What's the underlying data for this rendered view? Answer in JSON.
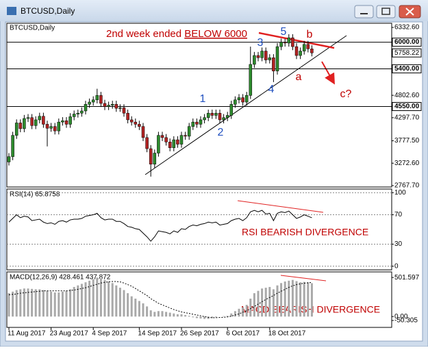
{
  "chart_data": [
    {
      "type": "candlestick",
      "title": "BTCUSD,Daily",
      "categories": [
        "11 Aug 2017",
        null,
        null,
        null,
        null,
        null,
        null,
        null,
        null,
        null,
        null,
        "23 Aug 2017",
        null,
        null,
        null,
        null,
        null,
        null,
        null,
        null,
        null,
        null,
        "4 Sep 2017",
        null,
        null,
        null,
        null,
        null,
        null,
        null,
        null,
        null,
        null,
        null,
        "14 Sep 2017",
        null,
        null,
        null,
        null,
        null,
        null,
        null,
        null,
        null,
        null,
        "26 Sep 2017",
        null,
        null,
        null,
        null,
        null,
        null,
        null,
        null,
        null,
        null,
        null,
        "6 Oct 2017",
        null,
        null,
        null,
        null,
        null,
        null,
        null,
        null,
        null,
        null,
        "18 Oct 2017",
        null,
        null,
        null,
        null,
        null,
        null,
        null,
        null,
        null,
        null,
        null
      ],
      "open": [
        3300,
        3420,
        3900,
        4180,
        4050,
        4280,
        4300,
        4120,
        4250,
        4330,
        4150,
        4060,
        4100,
        4000,
        4200,
        4230,
        4150,
        4320,
        4380,
        4400,
        4450,
        4600,
        4650,
        4700,
        4800,
        4620,
        4550,
        4580,
        4600,
        4510,
        4520,
        4400,
        4250,
        4200,
        4150,
        4100,
        3850,
        3600,
        3250,
        3500,
        3900,
        3850,
        3750,
        3620,
        3800,
        3700,
        3900,
        3880,
        4100,
        4200,
        4150,
        4250,
        4300,
        4400,
        4350,
        4400,
        4250,
        4300,
        4350,
        4600,
        4700,
        4750,
        4650,
        4800,
        5500,
        5700,
        5650,
        5800,
        5600,
        5650,
        5350,
        5900,
        6000,
        5980,
        6100,
        5900,
        5700,
        5800,
        5950,
        5850
      ],
      "high": [
        3500,
        3980,
        4260,
        4260,
        4360,
        4380,
        4380,
        4330,
        4410,
        4410,
        4230,
        4180,
        4180,
        4280,
        4310,
        4310,
        4400,
        4460,
        4480,
        4530,
        4680,
        4730,
        4780,
        4950,
        4880,
        4700,
        4660,
        4680,
        4680,
        4600,
        4600,
        4480,
        4330,
        4280,
        4230,
        4180,
        3930,
        3680,
        3580,
        3980,
        3980,
        3930,
        3830,
        3880,
        3880,
        3980,
        3980,
        4180,
        4280,
        4280,
        4330,
        4380,
        4480,
        4480,
        4480,
        4480,
        4380,
        4430,
        4680,
        4780,
        4830,
        4830,
        4880,
        5900,
        5780,
        5780,
        5880,
        5880,
        5730,
        5730,
        5980,
        6080,
        6080,
        6180,
        6180,
        5980,
        5880,
        6030,
        6030,
        5930
      ],
      "low": [
        3220,
        3340,
        3820,
        3970,
        3970,
        4200,
        4040,
        4040,
        4170,
        4070,
        3650,
        3980,
        3920,
        3920,
        4120,
        4070,
        4070,
        4240,
        4300,
        4320,
        4370,
        4520,
        4570,
        4620,
        4540,
        4470,
        4470,
        4500,
        4430,
        4430,
        4320,
        4170,
        4120,
        4070,
        4020,
        3770,
        3520,
        2970,
        3170,
        3420,
        3770,
        3670,
        3540,
        3540,
        3620,
        3620,
        3800,
        3800,
        4020,
        4070,
        4070,
        4170,
        4220,
        4270,
        4270,
        4170,
        4170,
        4220,
        4270,
        4520,
        4620,
        4570,
        4570,
        4720,
        5420,
        5570,
        5570,
        5520,
        5520,
        5100,
        5270,
        5820,
        5900,
        5900,
        5820,
        5620,
        5620,
        5720,
        5770,
        5680
      ],
      "close": [
        3420,
        3900,
        4180,
        4050,
        4280,
        4300,
        4120,
        4250,
        4330,
        4150,
        4060,
        4100,
        4000,
        4200,
        4230,
        4150,
        4320,
        4380,
        4400,
        4450,
        4600,
        4650,
        4700,
        4800,
        4620,
        4550,
        4580,
        4600,
        4510,
        4520,
        4400,
        4250,
        4200,
        4150,
        4100,
        3850,
        3600,
        3250,
        3500,
        3900,
        3850,
        3750,
        3620,
        3800,
        3700,
        3900,
        3880,
        4100,
        4200,
        4150,
        4250,
        4300,
        4400,
        4350,
        4400,
        4250,
        4300,
        4350,
        4600,
        4700,
        4750,
        4650,
        4800,
        5500,
        5700,
        5650,
        5800,
        5600,
        5650,
        5350,
        5900,
        6000,
        5980,
        6100,
        5900,
        5700,
        5800,
        5950,
        5850,
        5758.22
      ],
      "up_color": "#2e8b2e",
      "down_color": "#b22222",
      "ylim": [
        2736,
        6426
      ],
      "yticks": [
        {
          "value": 6332.6,
          "label": "6332.60"
        },
        {
          "value": 4802.6,
          "label": "4802.60"
        },
        {
          "value": 4297.7,
          "label": "4297.70"
        },
        {
          "value": 3777.5,
          "label": "3777.50"
        },
        {
          "value": 3272.6,
          "label": "3272.60"
        },
        {
          "value": 2767.7,
          "label": "2767.70"
        }
      ],
      "levels": [
        {
          "value": 6000,
          "label": "6000.00"
        },
        {
          "value": 5400,
          "label": "5400.00"
        },
        {
          "value": 4550,
          "label": "4550.00"
        }
      ],
      "last": 5758.22,
      "annotations": [
        "2nd week ended",
        "BELOW 6000",
        "1",
        "2",
        "3",
        "4",
        "5",
        "a",
        "b",
        "c?"
      ]
    },
    {
      "type": "line",
      "title": "RSI(14) 65.8758",
      "color": "#000000",
      "values": [
        60,
        65,
        70,
        66,
        68,
        67,
        62,
        63,
        64,
        60,
        58,
        59,
        57,
        61,
        62,
        60,
        63,
        64,
        64,
        65,
        68,
        69,
        70,
        72,
        66,
        63,
        64,
        64,
        61,
        61,
        58,
        54,
        53,
        51,
        50,
        45,
        40,
        34,
        40,
        48,
        47,
        46,
        44,
        48,
        46,
        51,
        50,
        54,
        56,
        55,
        57,
        58,
        60,
        59,
        60,
        56,
        57,
        58,
        62,
        64,
        65,
        62,
        66,
        74,
        76,
        74,
        76,
        71,
        72,
        62,
        72,
        74,
        73,
        75,
        70,
        65,
        67,
        70,
        68,
        65.8758
      ],
      "ylim": [
        -5,
        105
      ],
      "yticks": [
        0,
        30,
        70,
        100
      ],
      "annotation": "RSI BEARISH DIVERGENCE"
    },
    {
      "type": "macd",
      "title": "MACD(12,26,9) 428.461 437.872",
      "color": "#a9a9a9",
      "values": [
        300,
        320,
        340,
        350,
        360,
        360,
        355,
        350,
        350,
        340,
        330,
        320,
        310,
        310,
        320,
        330,
        350,
        380,
        400,
        420,
        440,
        460,
        480,
        500,
        490,
        470,
        450,
        430,
        400,
        370,
        340,
        300,
        260,
        230,
        200,
        170,
        130,
        80,
        60,
        70,
        70,
        60,
        50,
        40,
        30,
        30,
        20,
        10,
        -10,
        -20,
        -25,
        -30,
        -30,
        -20,
        -10,
        0,
        5,
        10,
        40,
        70,
        100,
        120,
        150,
        230,
        300,
        330,
        360,
        370,
        380,
        350,
        400,
        430,
        450,
        460,
        470,
        455,
        440,
        445,
        440,
        428.461
      ],
      "signal": [
        280,
        285,
        290,
        300,
        305,
        310,
        315,
        320,
        325,
        330,
        330,
        330,
        330,
        330,
        330,
        330,
        335,
        340,
        350,
        360,
        370,
        385,
        400,
        415,
        430,
        440,
        445,
        450,
        450,
        445,
        430,
        410,
        390,
        360,
        330,
        300,
        270,
        230,
        200,
        170,
        150,
        130,
        110,
        90,
        75,
        60,
        50,
        40,
        30,
        20,
        10,
        0,
        -10,
        -15,
        -15,
        -12,
        -10,
        -5,
        5,
        20,
        35,
        55,
        75,
        100,
        130,
        160,
        190,
        220,
        245,
        270,
        300,
        325,
        350,
        375,
        395,
        410,
        420,
        428,
        433,
        437.872
      ],
      "ylim": [
        -139,
        573
      ],
      "yticks": [
        501.597,
        {
          "value": 0,
          "label": "0.00"
        },
        -50.305
      ],
      "annotation": "MACD BEARISH DIVERGENCE"
    }
  ]
}
